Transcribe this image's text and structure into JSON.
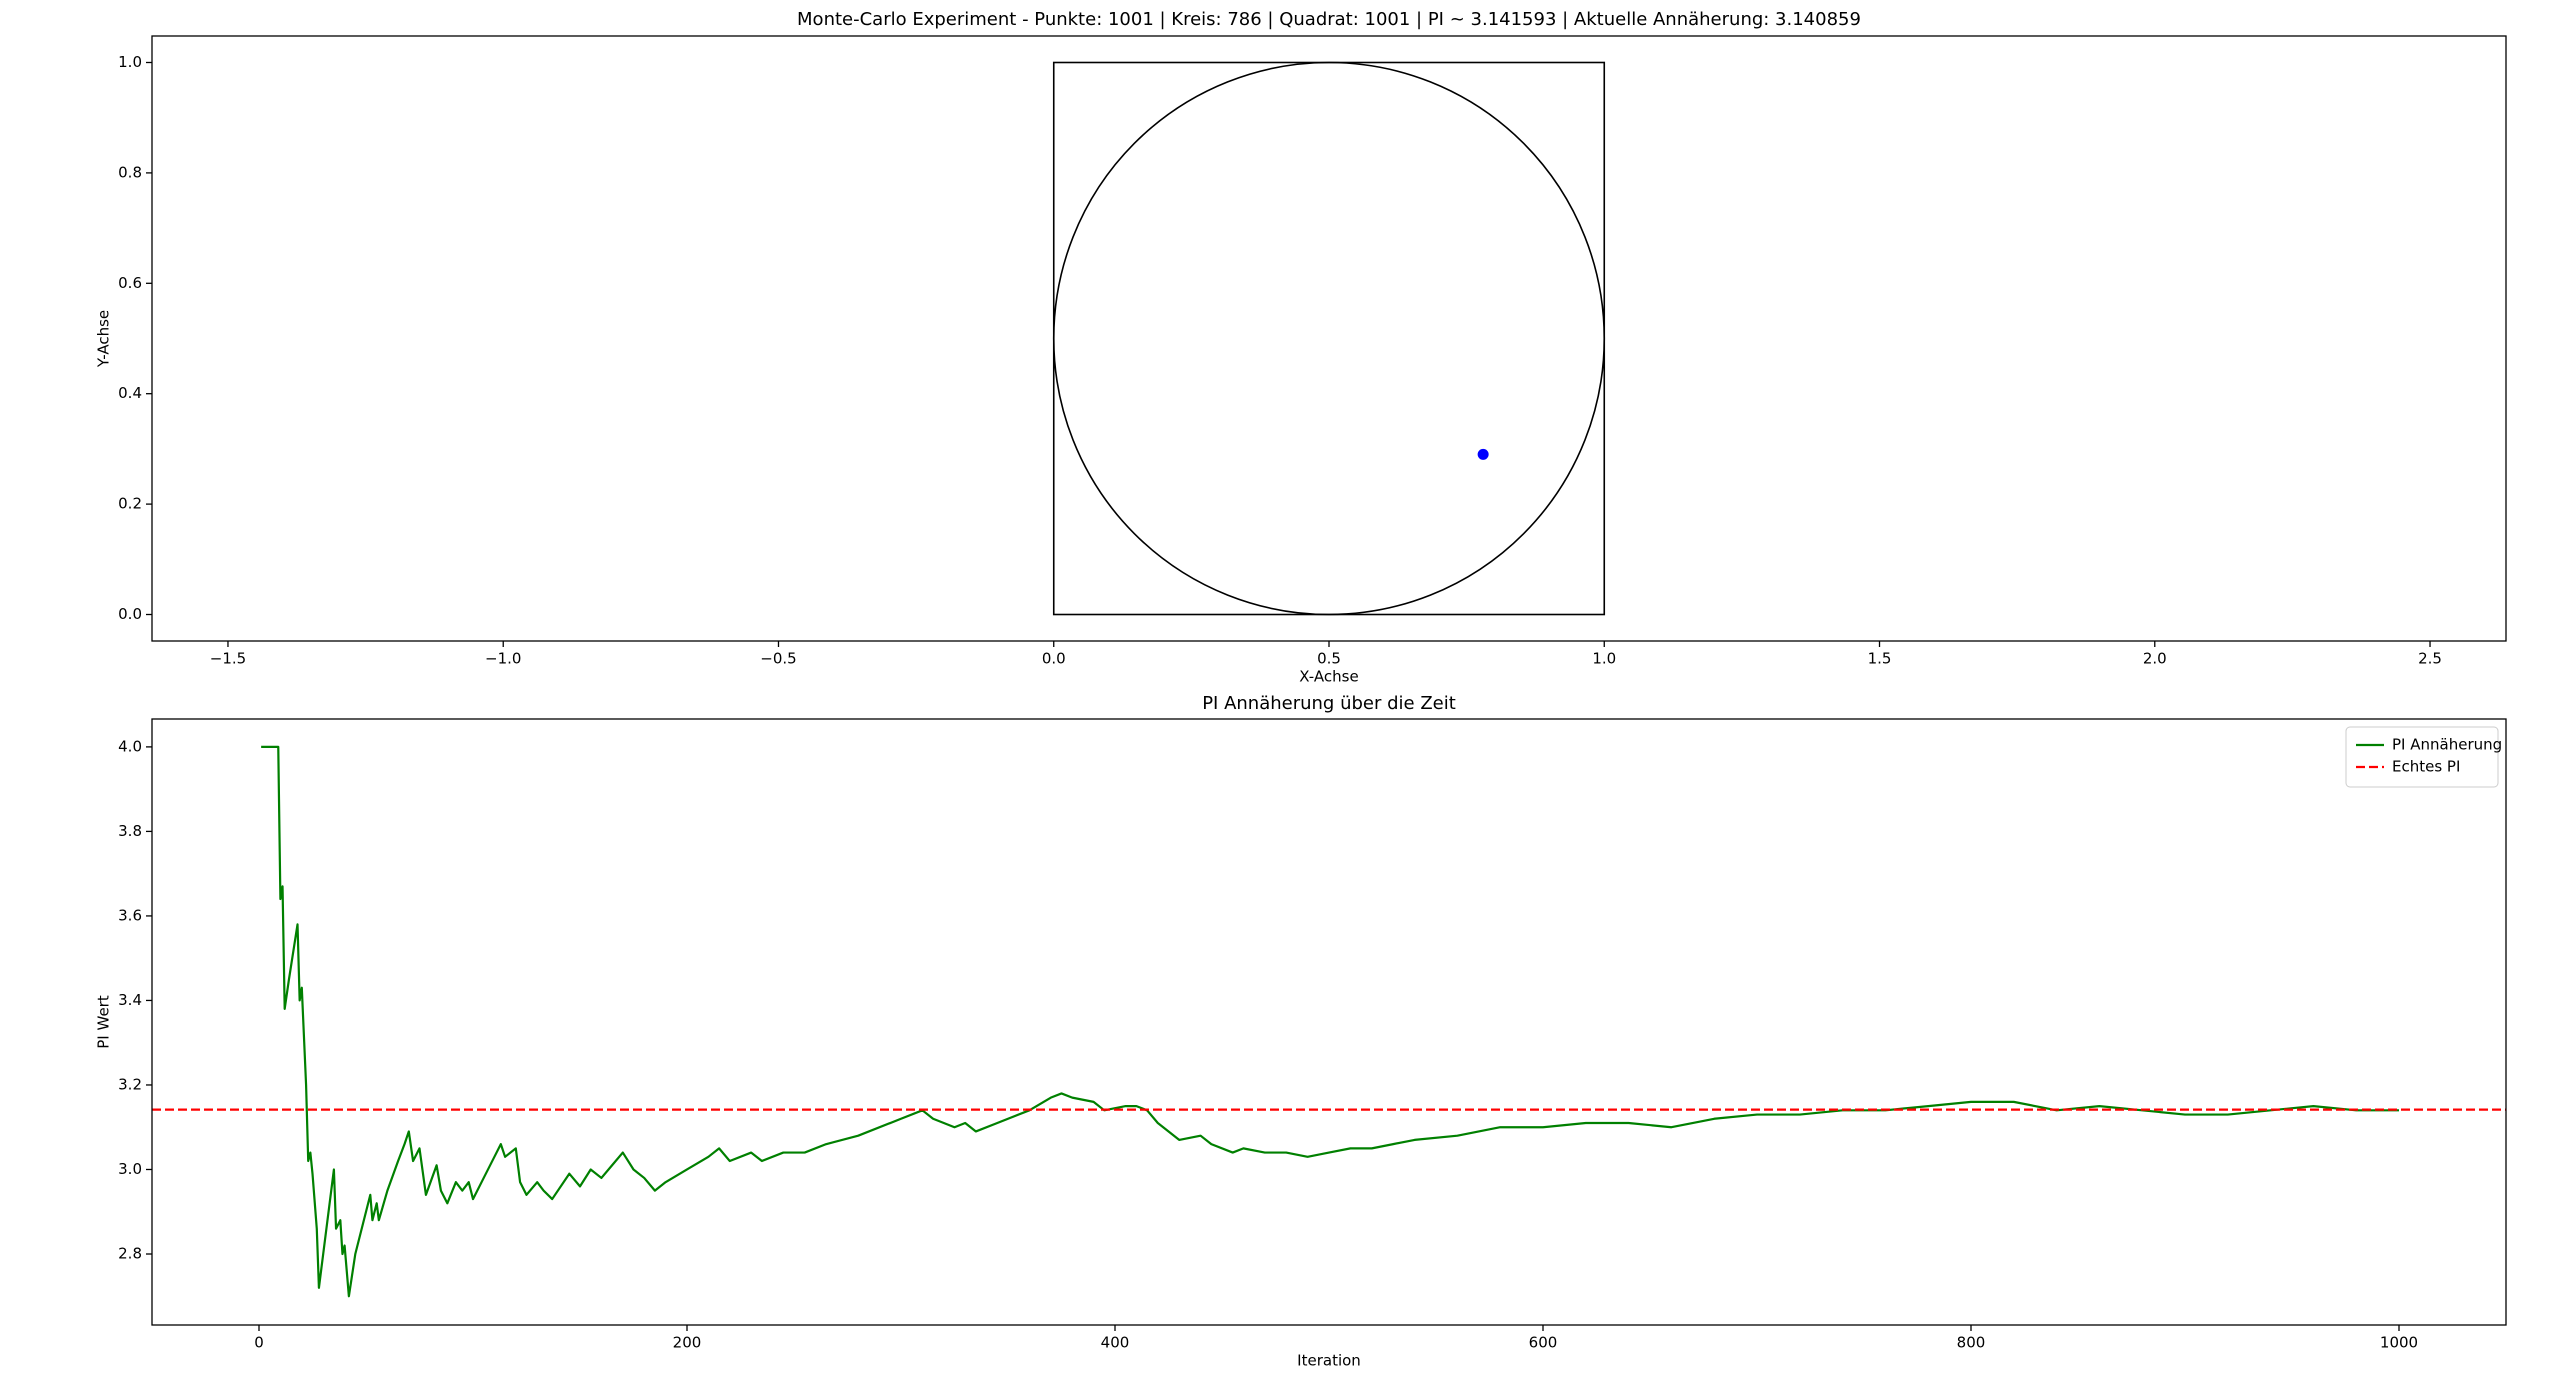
{
  "chart_data": [
    {
      "type": "scatter",
      "title": "Monte-Carlo Experiment - Punkte: 1001 | Kreis: 786 | Quadrat: 1001 | PI ~ 3.141593 | Aktuelle Annäherung: 3.140859",
      "xlabel": "X-Achse",
      "ylabel": "Y-Achse",
      "xlim": [
        -1.638,
        2.638
      ],
      "ylim": [
        -0.048,
        1.048
      ],
      "xticks": [
        {
          "value": -1.5,
          "label": "−1.5"
        },
        {
          "value": -1.0,
          "label": "−1.0"
        },
        {
          "value": -0.5,
          "label": "−0.5"
        },
        {
          "value": 0,
          "label": "0.0"
        },
        0.5,
        {
          "value": 1,
          "label": "1.0"
        },
        1.5,
        {
          "value": 2,
          "label": "2.0"
        },
        2.5
      ],
      "yticks": [
        {
          "value": 0,
          "label": "0.0"
        },
        0.2,
        0.4,
        0.6,
        0.8,
        {
          "value": 1,
          "label": "1.0"
        }
      ],
      "shapes": [
        {
          "type": "rect",
          "x": 0,
          "y": 0,
          "width": 1,
          "height": 1
        },
        {
          "type": "circle",
          "cx": 0.5,
          "cy": 0.5,
          "r": 0.5
        }
      ],
      "series": [
        {
          "color": "#0000ff",
          "x": [
            0.78
          ],
          "values": [
            0.29
          ]
        }
      ]
    },
    {
      "type": "line",
      "title": "PI Annäherung über die Zeit",
      "xlabel": "Iteration",
      "ylabel": "PI Wert",
      "xlim": [
        -50,
        1050
      ],
      "ylim": [
        2.632,
        4.066
      ],
      "xticks": [
        0,
        200,
        400,
        600,
        800,
        1000
      ],
      "yticks": [
        2.8,
        {
          "value": 3,
          "label": "3.0"
        },
        3.2,
        3.4,
        3.6,
        3.8,
        {
          "value": 4,
          "label": "4.0"
        }
      ],
      "legend": "upper right",
      "series": [
        {
          "name": "PI Annäherung",
          "color": "#008000",
          "style": "solid",
          "x": [
            1,
            9,
            10,
            11,
            12,
            14,
            18,
            19,
            20,
            22,
            23,
            24,
            25,
            27,
            28,
            30,
            35,
            36,
            38,
            39,
            40,
            42,
            45,
            50,
            52,
            53,
            55,
            56,
            60,
            65,
            68,
            70,
            72,
            75,
            78,
            83,
            85,
            88,
            92,
            95,
            98,
            100,
            105,
            110,
            113,
            115,
            120,
            122,
            125,
            130,
            133,
            137,
            145,
            150,
            155,
            160,
            165,
            170,
            175,
            180,
            185,
            190,
            200,
            210,
            215,
            220,
            230,
            235,
            245,
            255,
            265,
            280,
            300,
            310,
            315,
            325,
            330,
            335,
            345,
            360,
            370,
            375,
            380,
            390,
            395,
            405,
            410,
            415,
            420,
            430,
            440,
            445,
            455,
            460,
            470,
            480,
            490,
            500,
            510,
            520,
            530,
            540,
            560,
            580,
            600,
            620,
            640,
            660,
            680,
            700,
            720,
            740,
            760,
            780,
            800,
            820,
            840,
            860,
            880,
            900,
            920,
            940,
            960,
            980,
            1000
          ],
          "values": [
            4.0,
            4.0,
            3.64,
            3.67,
            3.38,
            3.45,
            3.58,
            3.4,
            3.43,
            3.2,
            3.02,
            3.04,
            2.99,
            2.86,
            2.72,
            2.8,
            3.0,
            2.86,
            2.88,
            2.8,
            2.82,
            2.7,
            2.8,
            2.9,
            2.94,
            2.88,
            2.92,
            2.88,
            2.95,
            3.02,
            3.06,
            3.09,
            3.02,
            3.05,
            2.94,
            3.01,
            2.95,
            2.92,
            2.97,
            2.95,
            2.97,
            2.93,
            2.98,
            3.03,
            3.06,
            3.03,
            3.05,
            2.97,
            2.94,
            2.97,
            2.95,
            2.93,
            2.99,
            2.96,
            3.0,
            2.98,
            3.01,
            3.04,
            3.0,
            2.98,
            2.95,
            2.97,
            3.0,
            3.03,
            3.05,
            3.02,
            3.04,
            3.02,
            3.04,
            3.04,
            3.06,
            3.08,
            3.12,
            3.14,
            3.12,
            3.1,
            3.11,
            3.09,
            3.11,
            3.14,
            3.17,
            3.18,
            3.17,
            3.16,
            3.14,
            3.15,
            3.15,
            3.14,
            3.11,
            3.07,
            3.08,
            3.06,
            3.04,
            3.05,
            3.04,
            3.04,
            3.03,
            3.04,
            3.05,
            3.05,
            3.06,
            3.07,
            3.08,
            3.1,
            3.1,
            3.11,
            3.11,
            3.1,
            3.12,
            3.13,
            3.13,
            3.14,
            3.14,
            3.15,
            3.16,
            3.16,
            3.14,
            3.15,
            3.14,
            3.13,
            3.13,
            3.14,
            3.15,
            3.14,
            3.14
          ]
        },
        {
          "name": "Echtes PI",
          "color": "#ff0000",
          "style": "dashed",
          "y": 3.141593
        }
      ]
    }
  ]
}
